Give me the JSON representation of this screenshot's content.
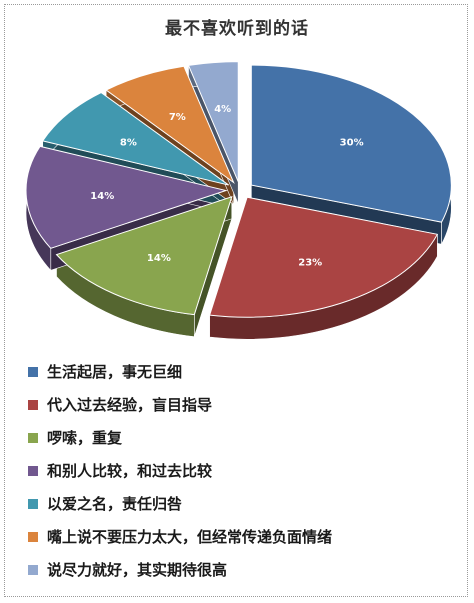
{
  "chart_data": {
    "type": "pie",
    "style": "3d-exploded",
    "title": "最不喜欢听到的话",
    "legend_position": "bottom",
    "slices": [
      {
        "label": "生活起居，事无巨细",
        "value": 30,
        "value_label": "30%",
        "color": "#4472A8"
      },
      {
        "label": "代入过去经验，盲目指导",
        "value": 23,
        "value_label": "23%",
        "color": "#AA4443"
      },
      {
        "label": "啰嗦，重复",
        "value": 14,
        "value_label": "14%",
        "color": "#89A54E"
      },
      {
        "label": "和别人比较，和过去比较",
        "value": 14,
        "value_label": "14%",
        "color": "#71588F"
      },
      {
        "label": "以爱之名，责任归咎",
        "value": 8,
        "value_label": "8%",
        "color": "#4198AF"
      },
      {
        "label": "嘴上说不要压力太大，但经常传递负面情绪",
        "value": 7,
        "value_label": "7%",
        "color": "#DB843D"
      },
      {
        "label": "说尽力就好，其实期待很高",
        "value": 4,
        "value_label": "4%",
        "color": "#93A9CF"
      }
    ]
  }
}
